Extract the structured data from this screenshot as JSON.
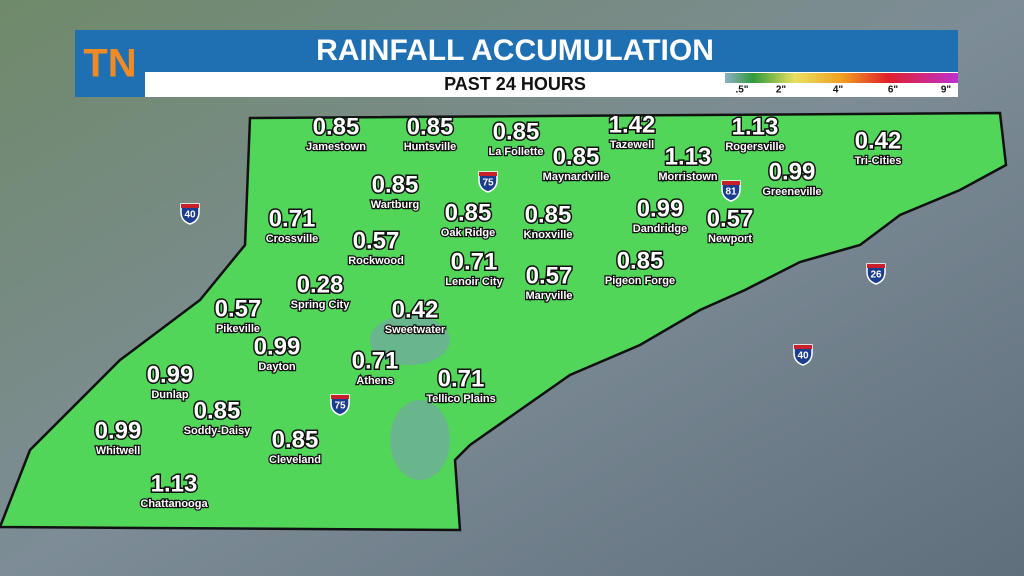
{
  "header": {
    "logo": "TN",
    "title": "RAINFALL ACCUMULATION",
    "subtitle": "PAST 24 HOURS",
    "legend": [
      ".5\"",
      "2\"",
      "4\"",
      "6\"",
      "9\""
    ]
  },
  "cities": [
    {
      "value": "0.85",
      "name": "Jamestown"
    },
    {
      "value": "0.85",
      "name": "Huntsville"
    },
    {
      "value": "0.85",
      "name": "La Follette"
    },
    {
      "value": "1.42",
      "name": "Tazewell"
    },
    {
      "value": "1.13",
      "name": "Rogersville"
    },
    {
      "value": "0.42",
      "name": "Tri-Cities"
    },
    {
      "value": "0.85",
      "name": "Maynardville"
    },
    {
      "value": "1.13",
      "name": "Morristown"
    },
    {
      "value": "0.99",
      "name": "Greeneville"
    },
    {
      "value": "0.85",
      "name": "Wartburg"
    },
    {
      "value": "0.85",
      "name": "Oak Ridge"
    },
    {
      "value": "0.85",
      "name": "Knoxville"
    },
    {
      "value": "0.99",
      "name": "Dandridge"
    },
    {
      "value": "0.57",
      "name": "Newport"
    },
    {
      "value": "0.71",
      "name": "Crossville"
    },
    {
      "value": "0.57",
      "name": "Rockwood"
    },
    {
      "value": "0.71",
      "name": "Lenoir City"
    },
    {
      "value": "0.57",
      "name": "Maryville"
    },
    {
      "value": "0.85",
      "name": "Pigeon Forge"
    },
    {
      "value": "0.28",
      "name": "Spring City"
    },
    {
      "value": "0.57",
      "name": "Pikeville"
    },
    {
      "value": "0.42",
      "name": "Sweetwater"
    },
    {
      "value": "0.99",
      "name": "Dayton"
    },
    {
      "value": "0.71",
      "name": "Athens"
    },
    {
      "value": "0.71",
      "name": "Tellico Plains"
    },
    {
      "value": "0.99",
      "name": "Dunlap"
    },
    {
      "value": "0.85",
      "name": "Soddy-Daisy"
    },
    {
      "value": "0.99",
      "name": "Whitwell"
    },
    {
      "value": "0.85",
      "name": "Cleveland"
    },
    {
      "value": "1.13",
      "name": "Chattanooga"
    }
  ],
  "interstates": [
    "40",
    "75",
    "81",
    "26",
    "40",
    "75"
  ]
}
